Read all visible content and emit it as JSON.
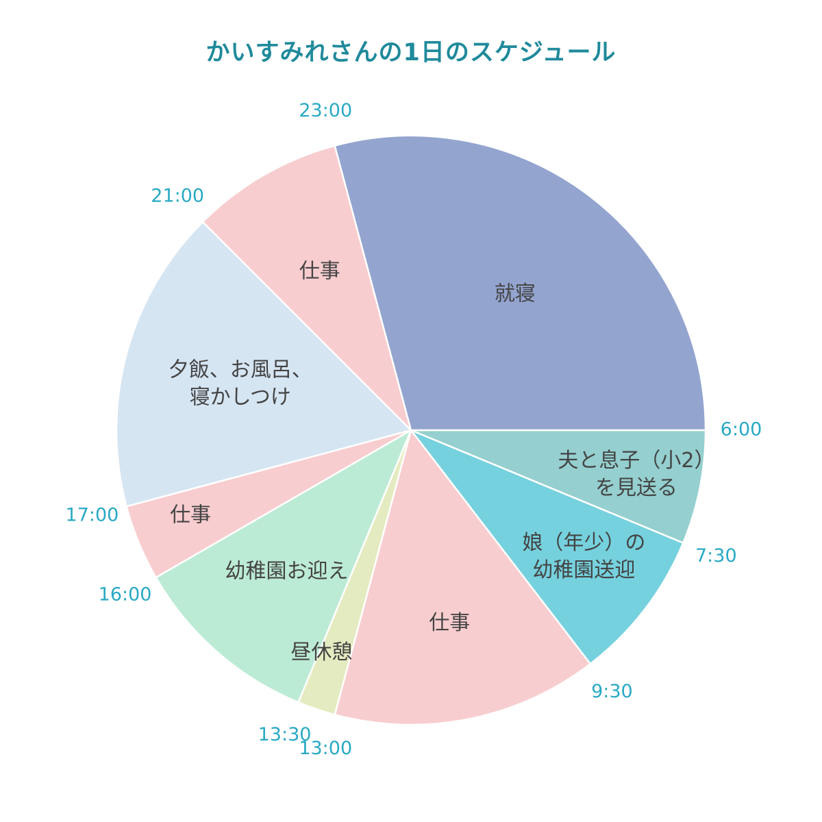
{
  "chart_data": {
    "type": "pie",
    "title": "かいすみれさんの1日のスケジュール",
    "slices": [
      {
        "name": "夫と息子（小2）を見送る",
        "lines": [
          "夫と息子（小2）",
          "を見送る"
        ],
        "start": "6:00",
        "end": "7:30",
        "hours": 1.5,
        "color": "#95cfcf"
      },
      {
        "name": "娘（年少）の幼稚園送迎",
        "lines": [
          "娘（年少）の",
          "幼稚園送迎"
        ],
        "start": "7:30",
        "end": "9:30",
        "hours": 2,
        "color": "#76d1de"
      },
      {
        "name": "仕事",
        "lines": [
          "仕事"
        ],
        "start": "9:30",
        "end": "13:00",
        "hours": 3.5,
        "color": "#f8cdd0"
      },
      {
        "name": "昼休憩",
        "lines": [
          "昼休憩"
        ],
        "start": "13:00",
        "end": "13:30",
        "hours": 0.5,
        "color": "#e5ebc0"
      },
      {
        "name": "幼稚園お迎え",
        "lines": [
          "幼稚園お迎え"
        ],
        "start": "13:30",
        "end": "16:00",
        "hours": 2.5,
        "color": "#bcebd5"
      },
      {
        "name": "仕事",
        "lines": [
          "仕事"
        ],
        "start": "16:00",
        "end": "17:00",
        "hours": 1,
        "color": "#f8cdd0"
      },
      {
        "name": "夕飯、お風呂、寝かしつけ",
        "lines": [
          "夕飯、お風呂、",
          "寝かしつけ"
        ],
        "start": "17:00",
        "end": "21:00",
        "hours": 4,
        "color": "#d6e5f2"
      },
      {
        "name": "仕事",
        "lines": [
          "仕事"
        ],
        "start": "21:00",
        "end": "23:00",
        "hours": 2,
        "color": "#f8cdd0"
      },
      {
        "name": "就寝",
        "lines": [
          "就寝"
        ],
        "start": "23:00",
        "end": "6:00",
        "hours": 7,
        "color": "#93a4cf"
      }
    ],
    "total_hours": 24,
    "direction": "clockwise",
    "start_angle_position": "3 o'clock",
    "title_color": "#1f8a9b",
    "time_label_color": "#29a9c4",
    "slice_label_color": "#444444"
  }
}
